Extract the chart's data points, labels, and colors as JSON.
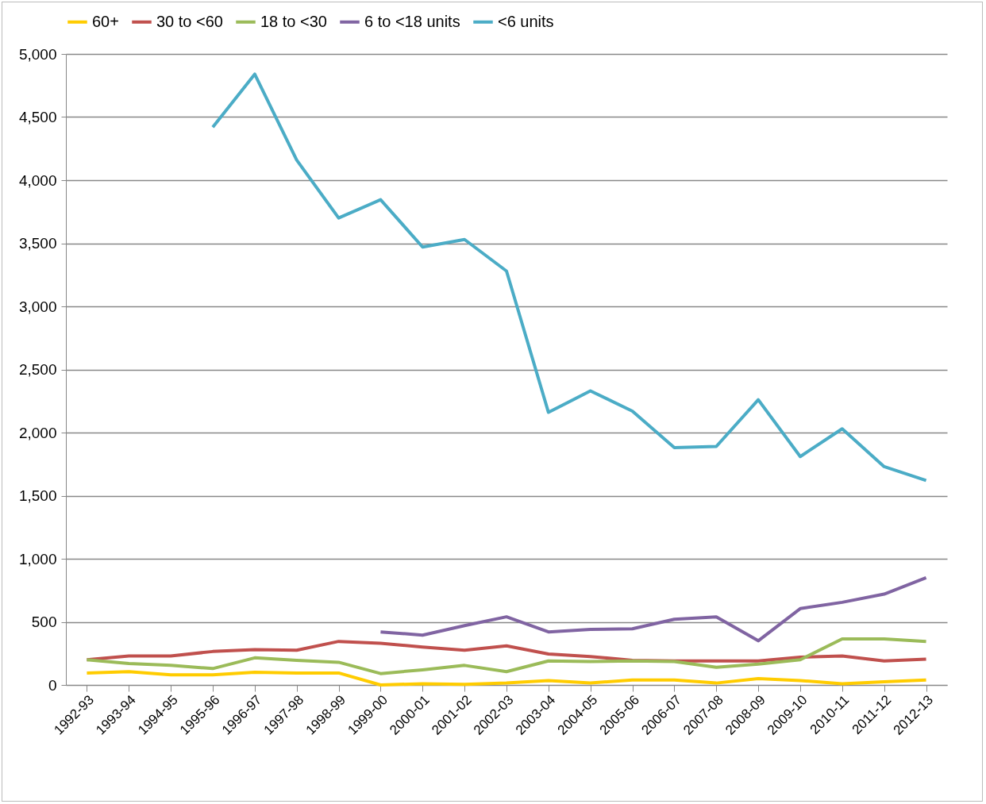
{
  "chart_data": {
    "type": "line",
    "categories": [
      "1992-93",
      "1993-94",
      "1994-95",
      "1995-96",
      "1996-97",
      "1997-98",
      "1998-99",
      "1999-00",
      "2000-01",
      "2001-02",
      "2002-03",
      "2003-04",
      "2004-05",
      "2005-06",
      "2006-07",
      "2007-08",
      "2008-09",
      "2009-10",
      "2010-11",
      "2011-12",
      "2012-13"
    ],
    "series": [
      {
        "name": "60+",
        "color": "#ffcc00",
        "values": [
          95,
          105,
          80,
          80,
          100,
          95,
          95,
          0,
          10,
          5,
          15,
          35,
          15,
          40,
          40,
          15,
          50,
          35,
          10,
          25,
          40
        ]
      },
      {
        "name": "30 to <60",
        "color": "#c0504d",
        "values": [
          200,
          230,
          230,
          265,
          280,
          275,
          345,
          330,
          300,
          275,
          310,
          245,
          225,
          195,
          190,
          190,
          190,
          220,
          230,
          190,
          205
        ]
      },
      {
        "name": "18 to <30",
        "color": "#9bbb59",
        "values": [
          200,
          170,
          155,
          130,
          215,
          195,
          180,
          90,
          120,
          155,
          105,
          190,
          185,
          190,
          185,
          140,
          165,
          200,
          365,
          365,
          345
        ]
      },
      {
        "name": "6 to <18 units",
        "color": "#8064a2",
        "values": [
          null,
          null,
          null,
          null,
          null,
          null,
          null,
          420,
          395,
          470,
          540,
          420,
          440,
          445,
          520,
          540,
          350,
          605,
          655,
          720,
          850
        ]
      },
      {
        "name": "<6 units",
        "color": "#4bacc6",
        "values": [
          null,
          null,
          null,
          4420,
          4840,
          4160,
          3700,
          3845,
          3470,
          3530,
          3280,
          2160,
          2330,
          2170,
          1880,
          1890,
          2260,
          1810,
          2030,
          1730,
          1620
        ]
      }
    ],
    "ylim": [
      0,
      5000
    ],
    "yticks": [
      0,
      500,
      {
        "value": 1000,
        "label": "1,000"
      },
      {
        "value": 1500,
        "label": "1,500"
      },
      {
        "value": 2000,
        "label": "2,000"
      },
      {
        "value": 2500,
        "label": "2,500"
      },
      {
        "value": 3000,
        "label": "3,000"
      },
      {
        "value": 3500,
        "label": "3,500"
      },
      {
        "value": 4000,
        "label": "4,000"
      },
      {
        "value": 4500,
        "label": "4,500"
      },
      {
        "value": 5000,
        "label": "5,000"
      }
    ],
    "grid": "y",
    "legend": "top",
    "marker": "none",
    "line_style": "solid"
  }
}
